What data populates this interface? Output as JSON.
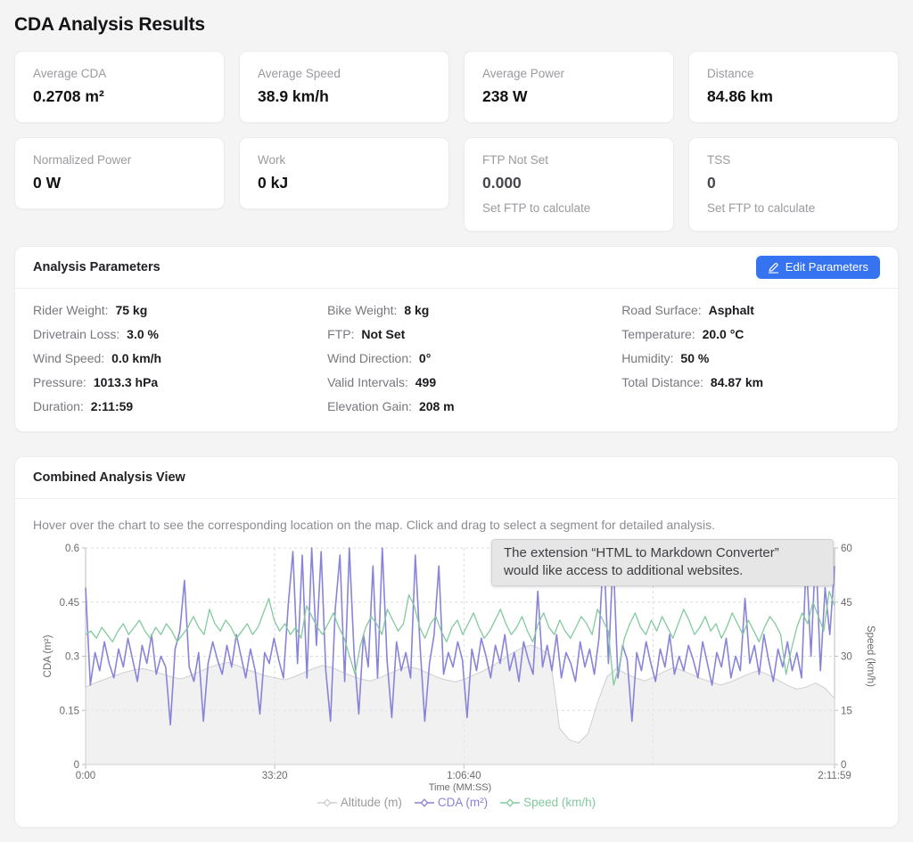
{
  "title": "CDA Analysis Results",
  "stats": {
    "cards": [
      {
        "label": "Average CDA",
        "value": "0.2708 m²"
      },
      {
        "label": "Average Speed",
        "value": "38.9 km/h"
      },
      {
        "label": "Average Power",
        "value": "238 W"
      },
      {
        "label": "Distance",
        "value": "84.86 km"
      },
      {
        "label": "Normalized Power",
        "value": "0 W"
      },
      {
        "label": "Work",
        "value": "0 kJ"
      },
      {
        "label": "FTP Not Set",
        "value": "0.000",
        "hint": "Set FTP to calculate"
      },
      {
        "label": "TSS",
        "value": "0",
        "hint": "Set FTP to calculate"
      }
    ]
  },
  "parameters": {
    "section_title": "Analysis Parameters",
    "edit_button_label": "Edit Parameters",
    "columns": [
      [
        {
          "label": "Rider Weight",
          "value": "75 kg"
        },
        {
          "label": "Drivetrain Loss",
          "value": "3.0 %"
        },
        {
          "label": "Wind Speed",
          "value": "0.0 km/h"
        },
        {
          "label": "Pressure",
          "value": "1013.3 hPa"
        },
        {
          "label": "Duration",
          "value": "2:11:59"
        }
      ],
      [
        {
          "label": "Bike Weight",
          "value": "8 kg"
        },
        {
          "label": "FTP",
          "value": "Not Set"
        },
        {
          "label": "Wind Direction",
          "value": "0°"
        },
        {
          "label": "Valid Intervals",
          "value": "499"
        },
        {
          "label": "Elevation Gain",
          "value": "208 m"
        }
      ],
      [
        {
          "label": "Road Surface",
          "value": "Asphalt"
        },
        {
          "label": "Temperature",
          "value": "20.0 °C"
        },
        {
          "label": "Humidity",
          "value": "50 %"
        },
        {
          "label": "Total Distance",
          "value": "84.87 km"
        }
      ]
    ]
  },
  "combined": {
    "section_title": "Combined Analysis View",
    "hint": "Hover over the chart to see the corresponding location on the map. Click and drag to select a segment for detailed analysis."
  },
  "notification": {
    "lines": [
      "The extension “HTML to Markdown Converter”",
      "would like access to additional websites."
    ]
  },
  "chart_data": {
    "type": "line",
    "xlabel": "Time (MM:SS)",
    "ylabel_left": "CDA (m²)",
    "ylabel_right": "Speed (km/h)",
    "x_max_sec": 7919,
    "x_ticks": [
      {
        "label": "0:00",
        "sec": 0
      },
      {
        "label": "33:20",
        "sec": 2000
      },
      {
        "label": "1:06:40",
        "sec": 4000
      },
      {
        "label": "2:11:59",
        "sec": 7919
      }
    ],
    "x_grid_only_sec": [
      6000
    ],
    "left_axis": {
      "min": 0,
      "max": 0.6,
      "ticks": [
        0,
        0.15,
        0.3,
        0.45,
        0.6
      ],
      "tick_labels": [
        "0",
        "0.15",
        "0.3",
        "0.45",
        "0.6"
      ]
    },
    "right_axis": {
      "min": 0,
      "max": 60,
      "ticks": [
        0,
        15,
        30,
        45,
        60
      ],
      "tick_labels": [
        "0",
        "15",
        "30",
        "45",
        "60"
      ]
    },
    "grid": true,
    "legend_position": "bottom",
    "series": [
      {
        "name": "Altitude (m)",
        "kind": "area",
        "color": "#cfcfcf",
        "fill": "#e9e9e9",
        "legend_text_color": "#9a9a9a",
        "axis": "hidden",
        "domain": [
          0,
          420
        ],
        "values": [
          150,
          158,
          165,
          172,
          178,
          183,
          186,
          182,
          176,
          170,
          166,
          172,
          180,
          188,
          194,
          198,
          192,
          184,
          178,
          172,
          168,
          164,
          170,
          178,
          186,
          192,
          188,
          180,
          172,
          166,
          162,
          168,
          176,
          184,
          190,
          186,
          178,
          170,
          164,
          160,
          166,
          174,
          182,
          192,
          204,
          216,
          226,
          232,
          224,
          210,
          70,
          48,
          42,
          60,
          120,
          170,
          186,
          176,
          168,
          162,
          170,
          180,
          188,
          182,
          174,
          166,
          160,
          154,
          160,
          168,
          176,
          182,
          174,
          164,
          154,
          146,
          150,
          158,
          148,
          128
        ]
      },
      {
        "name": "CDA (m²)",
        "kind": "line",
        "color": "#8884d8",
        "legend_text_color": "#8884d8",
        "axis": "left",
        "values": [
          0.49,
          0.22,
          0.31,
          0.26,
          0.34,
          0.28,
          0.24,
          0.32,
          0.27,
          0.35,
          0.29,
          0.23,
          0.33,
          0.28,
          0.36,
          0.25,
          0.3,
          0.27,
          0.11,
          0.32,
          0.37,
          0.51,
          0.27,
          0.23,
          0.31,
          0.12,
          0.28,
          0.34,
          0.29,
          0.25,
          0.33,
          0.27,
          0.36,
          0.3,
          0.24,
          0.32,
          0.26,
          0.14,
          0.31,
          0.28,
          0.35,
          0.29,
          0.24,
          0.44,
          0.59,
          0.28,
          0.58,
          0.24,
          0.6,
          0.33,
          0.59,
          0.26,
          0.12,
          0.43,
          0.58,
          0.23,
          0.6,
          0.31,
          0.14,
          0.36,
          0.27,
          0.55,
          0.24,
          0.6,
          0.29,
          0.13,
          0.34,
          0.26,
          0.31,
          0.24,
          0.58,
          0.33,
          0.12,
          0.28,
          0.36,
          0.55,
          0.25,
          0.31,
          0.27,
          0.34,
          0.29,
          0.13,
          0.32,
          0.26,
          0.35,
          0.3,
          0.24,
          0.33,
          0.28,
          0.36,
          0.26,
          0.31,
          0.23,
          0.34,
          0.29,
          0.25,
          0.48,
          0.27,
          0.33,
          0.26,
          0.36,
          0.24,
          0.31,
          0.28,
          0.23,
          0.34,
          0.27,
          0.32,
          0.25,
          0.35,
          0.6,
          0.28,
          0.58,
          0.24,
          0.33,
          0.29,
          0.12,
          0.31,
          0.26,
          0.34,
          0.28,
          0.23,
          0.32,
          0.27,
          0.36,
          0.25,
          0.3,
          0.26,
          0.33,
          0.29,
          0.24,
          0.34,
          0.28,
          0.22,
          0.31,
          0.27,
          0.35,
          0.24,
          0.3,
          0.26,
          0.46,
          0.28,
          0.33,
          0.25,
          0.36,
          0.29,
          0.23,
          0.32,
          0.27,
          0.34,
          0.26,
          0.31,
          0.24,
          0.57,
          0.3,
          0.6,
          0.26,
          0.49,
          0.36,
          0.55
        ]
      },
      {
        "name": "Speed (km/h)",
        "kind": "line",
        "color": "#82ca9d",
        "legend_text_color": "#82ca9d",
        "axis": "right",
        "values": [
          36,
          37,
          35,
          38,
          36,
          34,
          37,
          39,
          36,
          38,
          40,
          37,
          35,
          38,
          36,
          39,
          37,
          34,
          36,
          38,
          41,
          38,
          36,
          43,
          39,
          37,
          40,
          38,
          35,
          37,
          39,
          36,
          38,
          42,
          46,
          40,
          37,
          39,
          36,
          38,
          35,
          44,
          41,
          38,
          36,
          39,
          42,
          38,
          35,
          30,
          25,
          33,
          38,
          41,
          39,
          36,
          43,
          40,
          37,
          39,
          47,
          44,
          38,
          35,
          39,
          41,
          37,
          34,
          38,
          40,
          36,
          39,
          42,
          38,
          35,
          37,
          40,
          43,
          39,
          36,
          38,
          41,
          37,
          34,
          39,
          42,
          38,
          36,
          40,
          37,
          35,
          38,
          41,
          39,
          36,
          43,
          40,
          37,
          22,
          27,
          35,
          39,
          42,
          38,
          36,
          40,
          37,
          41,
          38,
          35,
          39,
          43,
          40,
          36,
          38,
          41,
          37,
          39,
          35,
          38,
          42,
          39,
          36,
          40,
          37,
          34,
          38,
          41,
          39,
          36,
          25,
          32,
          38,
          42,
          39,
          45,
          41,
          37,
          48,
          44
        ]
      }
    ]
  }
}
